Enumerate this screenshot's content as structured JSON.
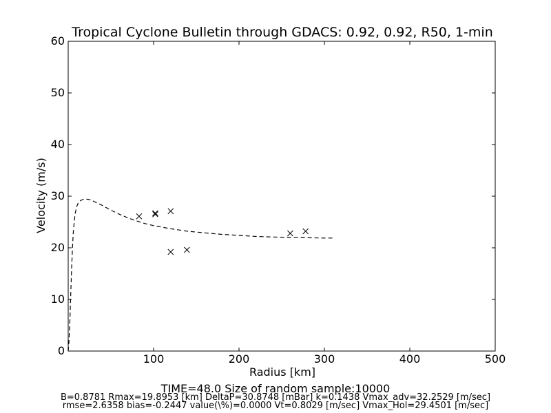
{
  "chart_data": {
    "type": "scatter",
    "title": "Tropical Cyclone Bulletin through GDACS: 0.92, 0.92, R50, 1-min",
    "xlabel": "Radius [km]",
    "ylabel": "Velocity (m/s)",
    "xlim": [
      0,
      500
    ],
    "ylim": [
      0,
      60
    ],
    "x_ticks": [
      100,
      200,
      300,
      400,
      500
    ],
    "y_ticks": [
      0,
      10,
      20,
      30,
      40,
      50,
      60
    ],
    "grid": false,
    "series": [
      {
        "kind": "dashed-line",
        "color": "#000000",
        "x": [
          0,
          1,
          2,
          3,
          4,
          5,
          6,
          8,
          10,
          12,
          15,
          18,
          20,
          25,
          30,
          40,
          50,
          60,
          70,
          80,
          90,
          100,
          120,
          140,
          160,
          180,
          200,
          220,
          240,
          260,
          280,
          300,
          310
        ],
        "y": [
          0,
          2,
          6,
          11,
          16,
          20,
          23,
          26.5,
          28,
          28.8,
          29.2,
          29.4,
          29.45,
          29.35,
          29,
          28.2,
          27.3,
          26.5,
          25.8,
          25.2,
          24.7,
          24.3,
          23.7,
          23.2,
          22.9,
          22.6,
          22.4,
          22.2,
          22.1,
          22.0,
          21.95,
          21.9,
          21.9
        ]
      },
      {
        "kind": "x-markers",
        "color": "#000000",
        "x": [
          83,
          102,
          102,
          120,
          120,
          139,
          260,
          278
        ],
        "y": [
          26.1,
          26.5,
          26.7,
          27.1,
          19.2,
          19.6,
          22.8,
          23.2
        ]
      }
    ]
  },
  "footer": {
    "line1": "TIME=48.0      Size of random sample:10000",
    "line2": "B=0.8781 Rmax=19.8953 [km]  DeltaP=30.8748 [mBar] k=0.1438 Vmax_adv=32.2529 [m/sec]",
    "line3": "rmse=2.6358 bias=-0.2447 value(\\%)=0.0000 Vt=0.8029 [m/sec] Vmax_Hol=29.4501 [m/sec]"
  }
}
